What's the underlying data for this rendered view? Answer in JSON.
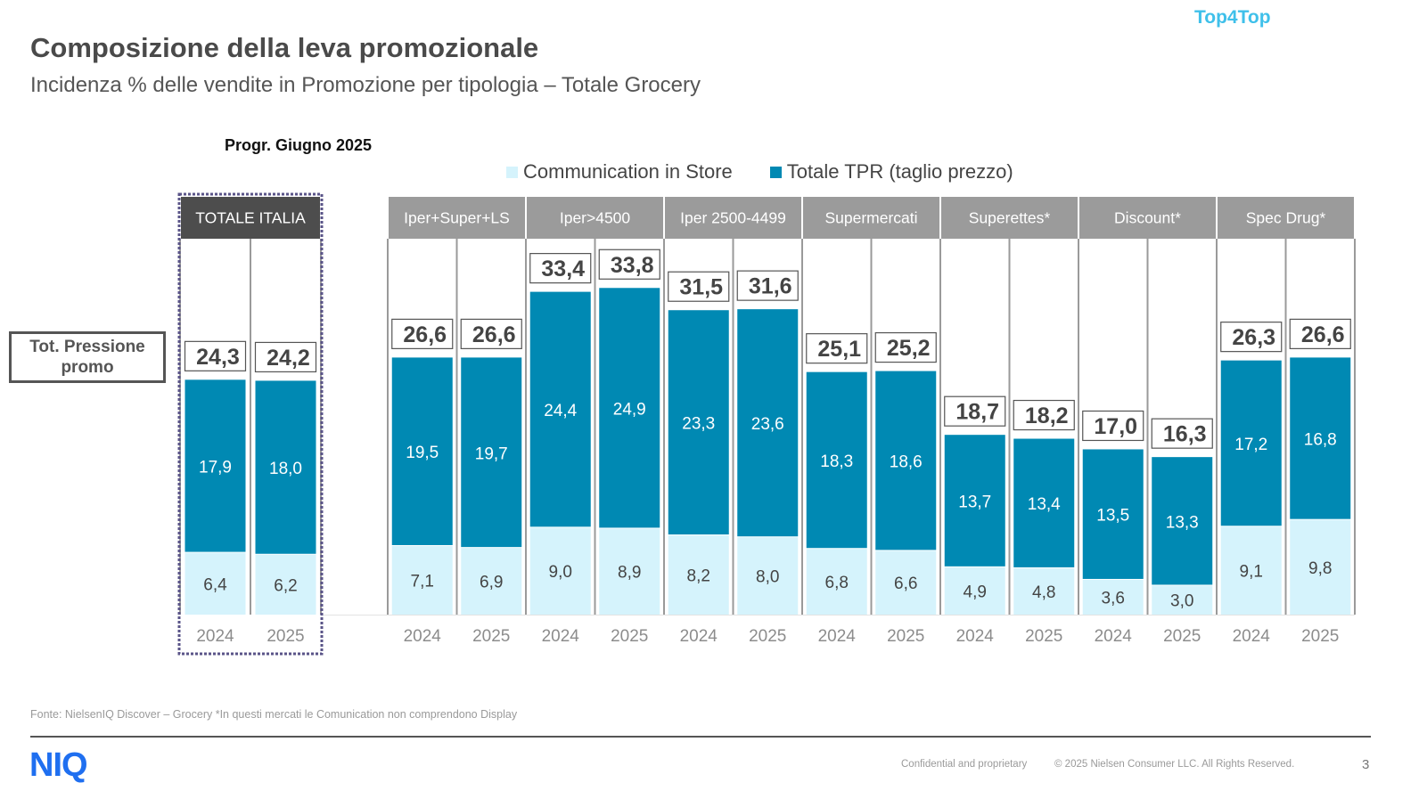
{
  "brand": "Top4Top",
  "header": {
    "title": "Composizione della leva promozionale",
    "subtitle": "Incidenza % delle vendite in Promozione per tipologia – Totale Grocery"
  },
  "period_label": "Progr. Giugno 2025",
  "side_label": "Tot. Pressione promo",
  "footer": {
    "source": "Fonte: NielsenIQ Discover – Grocery *In questi mercati le Comunication non comprendono Display",
    "logo": "NIQ",
    "confidential": "Confidential and proprietary",
    "copyright": "© 2025 Nielsen Consumer LLC. All Rights Reserved.",
    "page_number": "3"
  },
  "colors": {
    "tpr": "#0089b3",
    "communication": "#d5f3fc",
    "header_total": "#4d4d4d",
    "header_group": "#9b9b9b",
    "highlight_border": "#5a5488"
  },
  "chart_data": {
    "type": "bar",
    "stacked": true,
    "title": "Composizione della leva promozionale",
    "subtitle": "Incidenza % delle vendite in Promozione per tipologia – Totale Grocery",
    "xlabel": "",
    "ylabel": "",
    "ylim": [
      0,
      40
    ],
    "grid": false,
    "legend": {
      "position": "top",
      "entries": [
        "Communication in Store",
        "Totale TPR (taglio prezzo)"
      ]
    },
    "groups": [
      {
        "name": "TOTALE ITALIA",
        "highlight": true,
        "bars": [
          {
            "year": "2024",
            "communication": 6.4,
            "tpr": 17.9,
            "total": 24.3,
            "labels": {
              "communication": "6,4",
              "tpr": "17,9",
              "total": "24,3"
            }
          },
          {
            "year": "2025",
            "communication": 6.2,
            "tpr": 18.0,
            "total": 24.2,
            "labels": {
              "communication": "6,2",
              "tpr": "18,0",
              "total": "24,2"
            }
          }
        ]
      },
      {
        "name": "Iper+Super+LS",
        "highlight": false,
        "bars": [
          {
            "year": "2024",
            "communication": 7.1,
            "tpr": 19.5,
            "total": 26.6,
            "labels": {
              "communication": "7,1",
              "tpr": "19,5",
              "total": "26,6"
            }
          },
          {
            "year": "2025",
            "communication": 6.9,
            "tpr": 19.7,
            "total": 26.6,
            "labels": {
              "communication": "6,9",
              "tpr": "19,7",
              "total": "26,6"
            }
          }
        ]
      },
      {
        "name": "Iper>4500",
        "highlight": false,
        "bars": [
          {
            "year": "2024",
            "communication": 9.0,
            "tpr": 24.4,
            "total": 33.4,
            "labels": {
              "communication": "9,0",
              "tpr": "24,4",
              "total": "33,4"
            }
          },
          {
            "year": "2025",
            "communication": 8.9,
            "tpr": 24.9,
            "total": 33.8,
            "labels": {
              "communication": "8,9",
              "tpr": "24,9",
              "total": "33,8"
            }
          }
        ]
      },
      {
        "name": "Iper 2500-4499",
        "highlight": false,
        "bars": [
          {
            "year": "2024",
            "communication": 8.2,
            "tpr": 23.3,
            "total": 31.5,
            "labels": {
              "communication": "8,2",
              "tpr": "23,3",
              "total": "31,5"
            }
          },
          {
            "year": "2025",
            "communication": 8.0,
            "tpr": 23.6,
            "total": 31.6,
            "labels": {
              "communication": "8,0",
              "tpr": "23,6",
              "total": "31,6"
            }
          }
        ]
      },
      {
        "name": "Supermercati",
        "highlight": false,
        "bars": [
          {
            "year": "2024",
            "communication": 6.8,
            "tpr": 18.3,
            "total": 25.1,
            "labels": {
              "communication": "6,8",
              "tpr": "18,3",
              "total": "25,1"
            }
          },
          {
            "year": "2025",
            "communication": 6.6,
            "tpr": 18.6,
            "total": 25.2,
            "labels": {
              "communication": "6,6",
              "tpr": "18,6",
              "total": "25,2"
            }
          }
        ]
      },
      {
        "name": "Superettes*",
        "highlight": false,
        "bars": [
          {
            "year": "2024",
            "communication": 4.9,
            "tpr": 13.7,
            "total": 18.7,
            "labels": {
              "communication": "4,9",
              "tpr": "13,7",
              "total": "18,7"
            }
          },
          {
            "year": "2025",
            "communication": 4.8,
            "tpr": 13.4,
            "total": 18.2,
            "labels": {
              "communication": "4,8",
              "tpr": "13,4",
              "total": "18,2"
            }
          }
        ]
      },
      {
        "name": "Discount*",
        "highlight": false,
        "bars": [
          {
            "year": "2024",
            "communication": 3.6,
            "tpr": 13.5,
            "total": 17.0,
            "labels": {
              "communication": "3,6",
              "tpr": "13,5",
              "total": "17,0"
            }
          },
          {
            "year": "2025",
            "communication": 3.0,
            "tpr": 13.3,
            "total": 16.3,
            "labels": {
              "communication": "3,0",
              "tpr": "13,3",
              "total": "16,3"
            }
          }
        ]
      },
      {
        "name": "Spec Drug*",
        "highlight": false,
        "bars": [
          {
            "year": "2024",
            "communication": 9.1,
            "tpr": 17.2,
            "total": 26.3,
            "labels": {
              "communication": "9,1",
              "tpr": "17,2",
              "total": "26,3"
            }
          },
          {
            "year": "2025",
            "communication": 9.8,
            "tpr": 16.8,
            "total": 26.6,
            "labels": {
              "communication": "9,8",
              "tpr": "16,8",
              "total": "26,6"
            }
          }
        ]
      }
    ]
  }
}
